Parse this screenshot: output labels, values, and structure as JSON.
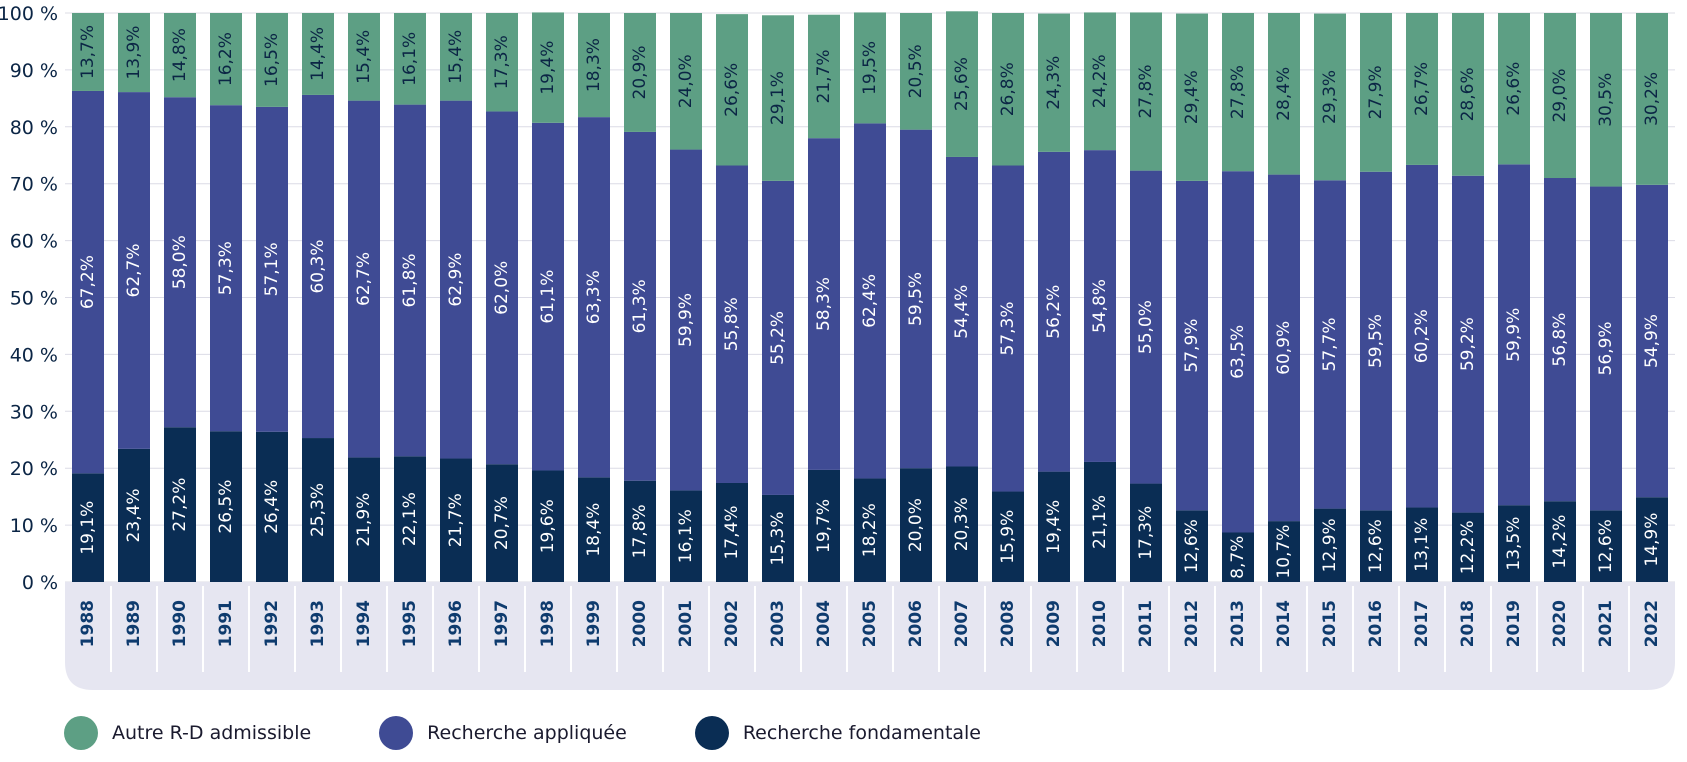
{
  "chart_data": {
    "type": "bar",
    "stacked": true,
    "title": "",
    "xlabel": "",
    "ylabel": "",
    "ylim": [
      0,
      100
    ],
    "y_ticks": [
      "0 %",
      "10 %",
      "20 %",
      "30 %",
      "40 %",
      "50 %",
      "60 %",
      "70 %",
      "80 %",
      "90 %",
      "100 %"
    ],
    "categories": [
      "1988",
      "1989",
      "1990",
      "1991",
      "1992",
      "1993",
      "1994",
      "1995",
      "1996",
      "1997",
      "1998",
      "1999",
      "2000",
      "2001",
      "2002",
      "2003",
      "2004",
      "2005",
      "2006",
      "2007",
      "2008",
      "2009",
      "2010",
      "2011",
      "2012",
      "2013",
      "2014",
      "2015",
      "2016",
      "2017",
      "2018",
      "2019",
      "2020",
      "2021",
      "2022"
    ],
    "series": [
      {
        "name": "Recherche fondamentale",
        "color": "#0a2d54",
        "values": [
          19.1,
          23.4,
          27.2,
          26.5,
          26.4,
          25.3,
          21.9,
          22.1,
          21.7,
          20.7,
          19.6,
          18.4,
          17.8,
          16.1,
          17.4,
          15.3,
          19.7,
          18.2,
          20.0,
          20.3,
          15.9,
          19.4,
          21.1,
          17.3,
          12.6,
          8.7,
          10.7,
          12.9,
          12.6,
          13.1,
          12.2,
          13.5,
          14.2,
          12.6,
          14.9
        ],
        "labels": [
          "19,1%",
          "23,4%",
          "27,2%",
          "26,5%",
          "26,4%",
          "25,3%",
          "21,9%",
          "22,1%",
          "21,7%",
          "20,7%",
          "19,6%",
          "18,4%",
          "17,8%",
          "16,1%",
          "17,4%",
          "15,3%",
          "19,7%",
          "18,2%",
          "20,0%",
          "20,3%",
          "15,9%",
          "19,4%",
          "21,1%",
          "17,3%",
          "12,6%",
          "8,7%",
          "10,7%",
          "12,9%",
          "12,6%",
          "13,1%",
          "12,2%",
          "13,5%",
          "14,2%",
          "12,6%",
          "14,9%"
        ]
      },
      {
        "name": "Recherche appliquée",
        "color": "#3f4b94",
        "values": [
          67.2,
          62.7,
          58.0,
          57.3,
          57.1,
          60.3,
          62.7,
          61.8,
          62.9,
          62.0,
          61.1,
          63.3,
          61.3,
          59.9,
          55.8,
          55.2,
          58.3,
          62.4,
          59.5,
          54.4,
          57.3,
          56.2,
          54.8,
          55.0,
          57.9,
          63.5,
          60.9,
          57.7,
          59.5,
          60.2,
          59.2,
          59.9,
          56.8,
          56.9,
          54.9
        ],
        "labels": [
          "67,2%",
          "62,7%",
          "58,0%",
          "57,3%",
          "57,1%",
          "60,3%",
          "62,7%",
          "61,8%",
          "62,9%",
          "62,0%",
          "61,1%",
          "63,3%",
          "61,3%",
          "59,9%",
          "55,8%",
          "55,2%",
          "58,3%",
          "62,4%",
          "59,5%",
          "54,4%",
          "57,3%",
          "56,2%",
          "54,8%",
          "55,0%",
          "57,9%",
          "63,5%",
          "60,9%",
          "57,7%",
          "59,5%",
          "60,2%",
          "59,2%",
          "59,9%",
          "56,8%",
          "56,9%",
          "54,9%"
        ]
      },
      {
        "name": "Autre R-D admissible",
        "color": "#5d9f84",
        "values": [
          13.7,
          13.9,
          14.8,
          16.2,
          16.5,
          14.4,
          15.4,
          16.1,
          15.4,
          17.3,
          19.4,
          18.3,
          20.9,
          24.0,
          26.6,
          29.1,
          21.7,
          19.5,
          20.5,
          25.6,
          26.8,
          24.3,
          24.2,
          27.8,
          29.4,
          27.8,
          28.4,
          29.3,
          27.9,
          26.7,
          28.6,
          26.6,
          29.0,
          30.5,
          30.2
        ],
        "labels": [
          "13,7%",
          "13,9%",
          "14,8%",
          "16,2%",
          "16,5%",
          "14,4%",
          "15,4%",
          "16,1%",
          "15,4%",
          "17,3%",
          "19,4%",
          "18,3%",
          "20,9%",
          "24,0%",
          "26,6%",
          "29,1%",
          "21,7%",
          "19,5%",
          "20,5%",
          "25,6%",
          "26,8%",
          "24,3%",
          "24,2%",
          "27,8%",
          "29,4%",
          "27,8%",
          "28,4%",
          "29,3%",
          "27,9%",
          "26,7%",
          "28,6%",
          "26,6%",
          "29,0%",
          "30,5%",
          "30,2%"
        ]
      }
    ],
    "legend": [
      {
        "label": "Autre R-D admissible",
        "color": "#5d9f84"
      },
      {
        "label": "Recherche appliquée",
        "color": "#3f4b94"
      },
      {
        "label": "Recherche fondamentale",
        "color": "#0a2d54"
      }
    ]
  }
}
